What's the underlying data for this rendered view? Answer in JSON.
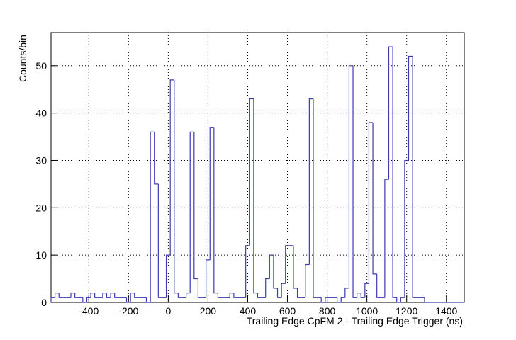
{
  "chart_data": {
    "type": "histogram",
    "x_label": "Trailing Edge CpFM 2 - Trailing Edge Trigger (ns)",
    "y_label": "Counts/bin",
    "color": "#3b3bb0",
    "grid": true,
    "bins": [
      -590,
      -570,
      -550,
      -530,
      -510,
      -490,
      -470,
      -450,
      -430,
      -410,
      -390,
      -370,
      -350,
      -330,
      -310,
      -290,
      -270,
      -250,
      -230,
      -210,
      -190,
      -170,
      -150,
      -130,
      -110,
      -90,
      -70,
      -50,
      -30,
      -10,
      10,
      30,
      50,
      70,
      90,
      110,
      130,
      150,
      170,
      190,
      210,
      230,
      250,
      270,
      290,
      310,
      330,
      350,
      370,
      390,
      410,
      430,
      450,
      470,
      490,
      510,
      530,
      550,
      570,
      590,
      610,
      630,
      650,
      670,
      690,
      710,
      730,
      750,
      770,
      790,
      810,
      830,
      850,
      870,
      890,
      910,
      930,
      950,
      970,
      990,
      1010,
      1030,
      1050,
      1070,
      1090,
      1110,
      1130,
      1150,
      1170,
      1190,
      1210,
      1230,
      1250,
      1270,
      1290,
      1310,
      1330,
      1350,
      1370,
      1390,
      1410,
      1430,
      1450,
      1470,
      1490
    ],
    "values": [
      1,
      2,
      1,
      1,
      1,
      2,
      1,
      1,
      0,
      1,
      2,
      1,
      1,
      2,
      1,
      2,
      1,
      1,
      1,
      0,
      2,
      1,
      1,
      1,
      0,
      36,
      25,
      1,
      1,
      10,
      47,
      2,
      1,
      1,
      2,
      36,
      5,
      1,
      1,
      9,
      37,
      2,
      1,
      1,
      1,
      2,
      1,
      1,
      1,
      12,
      43,
      2,
      1,
      1,
      5,
      10,
      3,
      1,
      4,
      12,
      12,
      3,
      1,
      1,
      8,
      43,
      1,
      1,
      0,
      1,
      1,
      1,
      0,
      1,
      3,
      50,
      1,
      2,
      1,
      4,
      38,
      6,
      1,
      1,
      26,
      54,
      1,
      0,
      1,
      30,
      52,
      1,
      1,
      1,
      0,
      0,
      0,
      0,
      0,
      0,
      0,
      0,
      0,
      0
    ],
    "xlim": [
      -590,
      1490
    ],
    "ylim": [
      0,
      57
    ],
    "xticks": [
      -400,
      -200,
      0,
      200,
      400,
      600,
      800,
      1000,
      1200,
      1400
    ],
    "yticks": [
      0,
      10,
      20,
      30,
      40,
      50
    ]
  }
}
